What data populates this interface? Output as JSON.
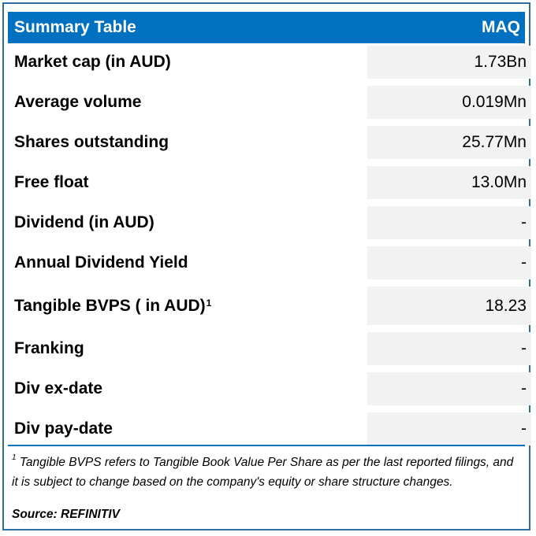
{
  "header": {
    "title": "Summary Table",
    "ticker": "MAQ"
  },
  "rows": [
    {
      "label": "Market cap (in AUD)",
      "value": "1.73Bn"
    },
    {
      "label": "Average volume",
      "value": "0.019Mn"
    },
    {
      "label": "Shares outstanding",
      "value": "25.77Mn"
    },
    {
      "label": "Free float",
      "value": "13.0Mn"
    },
    {
      "label": "Dividend (in AUD)",
      "value": "-"
    },
    {
      "label": "Annual Dividend Yield",
      "value": "-"
    },
    {
      "label": "Tangible BVPS ( in AUD)",
      "superscript": "1",
      "value": "18.23"
    },
    {
      "label": "Franking",
      "value": "-"
    },
    {
      "label": "Div ex-date",
      "value": "-"
    },
    {
      "label": "Div pay-date",
      "value": "-"
    }
  ],
  "footnote": {
    "marker": "1",
    "text": "Tangible BVPS refers to Tangible Book Value Per Share as per the last reported filings, and it is subject to change based on the company's equity or share structure changes."
  },
  "source": "Source: REFINITIV"
}
